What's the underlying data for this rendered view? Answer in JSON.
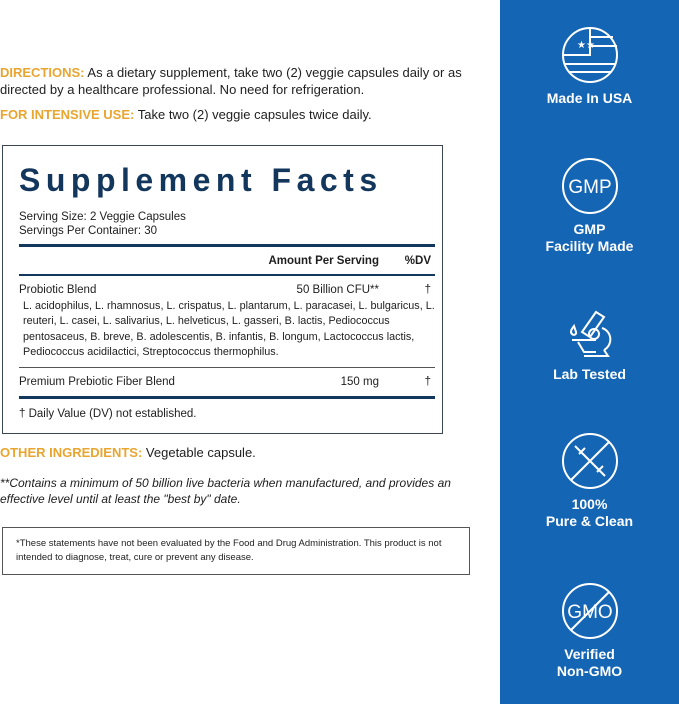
{
  "directions": {
    "label": "DIRECTIONS:",
    "text": "As a dietary supplement, take two (2) veggie capsules daily or as directed by a healthcare professional. No need for refrigeration."
  },
  "intensive": {
    "label": "FOR INTENSIVE USE:",
    "text": "Take two (2) veggie capsules twice daily."
  },
  "facts": {
    "title": "Supplement Facts",
    "serving_size": "Serving Size: 2 Veggie Capsules",
    "servings_per_container": "Servings Per Container: 30",
    "col_amount": "Amount Per Serving",
    "col_dv": "%DV",
    "rows": [
      {
        "name": "Probiotic Blend",
        "amount": "50 Billion CFU**",
        "dv": "†",
        "detail": "L. acidophilus, L. rhamnosus, L. crispatus, L. plantarum, L. paracasei, L. bulgaricus, L. reuteri, L. casei, L. salivarius, L. helveticus, L. gasseri, B. lactis, Pediococcus pentosaceus, B. breve, B. adolescentis, B. infantis, B. longum, Lactococcus lactis, Pediococcus acidilactici, Streptococcus thermophilus."
      },
      {
        "name": "Premium Prebiotic Fiber Blend",
        "amount": "150 mg",
        "dv": "†"
      }
    ],
    "footnote": "† Daily Value (DV) not established."
  },
  "other": {
    "label": "OTHER INGREDIENTS:",
    "text": "Vegetable capsule."
  },
  "cfu_note": "**Contains a minimum of 50 billion live bacteria when manufactured, and provides an effective level until at least the \"best by\" date.",
  "fda": "*These statements have not been evaluated by the Food and Drug Administration. This product is not intended to diagnose, treat, cure or prevent any disease.",
  "badges": [
    {
      "icon": "usa-flag-icon",
      "l1": "Made In USA"
    },
    {
      "icon": "gmp-icon",
      "l1": "GMP",
      "l2": "Facility Made",
      "text": "GMP"
    },
    {
      "icon": "microscope-icon",
      "l1": "Lab Tested"
    },
    {
      "icon": "no-syringe-icon",
      "l1": "100%",
      "l2": "Pure & Clean"
    },
    {
      "icon": "non-gmo-icon",
      "l1": "Verified",
      "l2": "Non-GMO",
      "text": "GMO"
    }
  ],
  "colors": {
    "gold": "#e8a530",
    "navy": "#12365c",
    "panel": "#1565b5"
  }
}
